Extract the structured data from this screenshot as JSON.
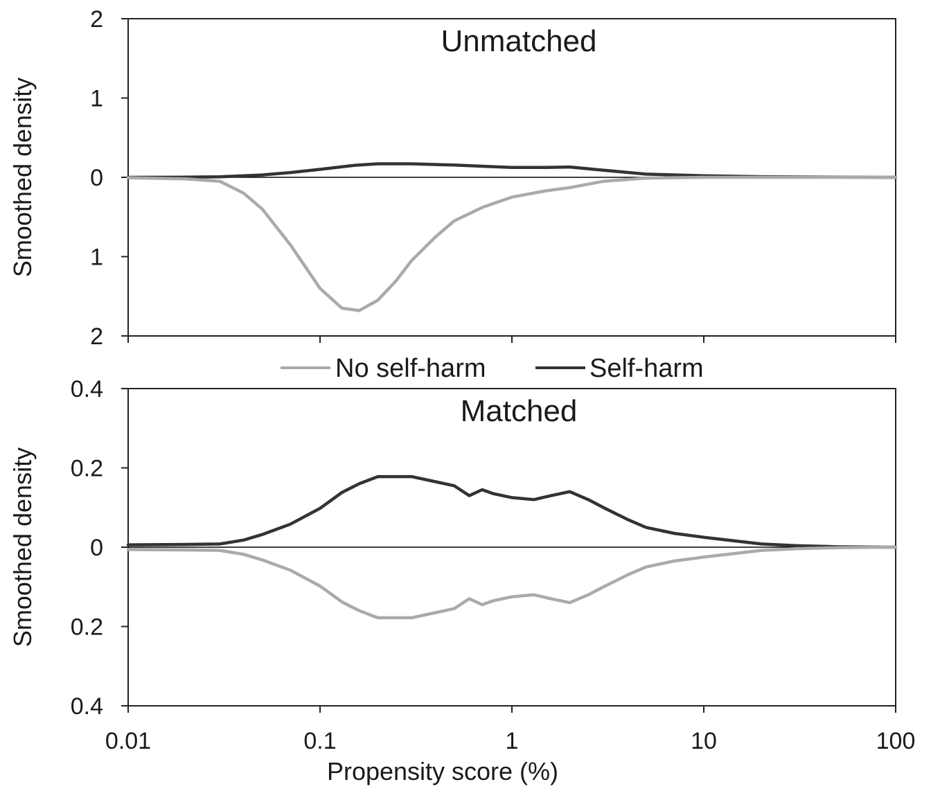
{
  "chart_data": [
    {
      "type": "line",
      "title": "Unmatched",
      "xlabel": "",
      "ylabel": "Smoothed density",
      "x_scale": "log",
      "xlim": [
        0.01,
        100
      ],
      "ylim": [
        -2,
        2
      ],
      "x_ticks": [
        "0.01",
        "0.1",
        "1",
        "10",
        "100"
      ],
      "y_tick_labels": [
        "2",
        "1",
        "0",
        "1",
        "2"
      ],
      "y_tick_values": [
        2,
        1,
        0,
        -1,
        -2
      ],
      "series": [
        {
          "name": "Self-harm",
          "color": "#333333",
          "x": [
            0.01,
            0.02,
            0.03,
            0.05,
            0.07,
            0.1,
            0.15,
            0.2,
            0.3,
            0.5,
            0.7,
            1,
            1.5,
            2,
            3,
            5,
            10,
            20,
            50,
            100
          ],
          "y": [
            0,
            0.002,
            0.006,
            0.03,
            0.06,
            0.1,
            0.15,
            0.17,
            0.17,
            0.155,
            0.14,
            0.125,
            0.125,
            0.13,
            0.09,
            0.04,
            0.02,
            0.008,
            0.002,
            0
          ]
        },
        {
          "name": "No self-harm",
          "color": "#aaaaaa",
          "x": [
            0.01,
            0.02,
            0.03,
            0.04,
            0.05,
            0.07,
            0.1,
            0.13,
            0.16,
            0.2,
            0.25,
            0.3,
            0.4,
            0.5,
            0.7,
            1,
            1.5,
            2,
            3,
            5,
            10,
            100
          ],
          "y": [
            -0.005,
            -0.02,
            -0.05,
            -0.2,
            -0.4,
            -0.85,
            -1.4,
            -1.65,
            -1.68,
            -1.55,
            -1.3,
            -1.05,
            -0.75,
            -0.55,
            -0.38,
            -0.25,
            -0.17,
            -0.13,
            -0.05,
            -0.01,
            0,
            0
          ]
        }
      ]
    },
    {
      "type": "line",
      "title": "Matched",
      "xlabel": "Propensity score (%)",
      "ylabel": "Smoothed density",
      "x_scale": "log",
      "xlim": [
        0.01,
        100
      ],
      "ylim": [
        -0.4,
        0.4
      ],
      "x_ticks": [
        "0.01",
        "0.1",
        "1",
        "10",
        "100"
      ],
      "y_tick_labels": [
        "0.4",
        "0.2",
        "0",
        "0.2",
        "0.4"
      ],
      "y_tick_values": [
        0.4,
        0.2,
        0,
        -0.2,
        -0.4
      ],
      "series": [
        {
          "name": "Self-harm",
          "color": "#333333",
          "x": [
            0.01,
            0.02,
            0.03,
            0.04,
            0.05,
            0.07,
            0.1,
            0.13,
            0.16,
            0.2,
            0.25,
            0.3,
            0.4,
            0.5,
            0.6,
            0.7,
            0.8,
            1,
            1.3,
            1.6,
            2,
            2.5,
            3,
            4,
            5,
            7,
            10,
            15,
            20,
            30,
            50,
            100
          ],
          "y": [
            0.006,
            0.007,
            0.008,
            0.018,
            0.032,
            0.058,
            0.098,
            0.138,
            0.16,
            0.178,
            0.178,
            0.178,
            0.165,
            0.155,
            0.13,
            0.145,
            0.135,
            0.125,
            0.12,
            0.13,
            0.14,
            0.12,
            0.1,
            0.07,
            0.05,
            0.035,
            0.025,
            0.015,
            0.008,
            0.004,
            0.001,
            0
          ]
        },
        {
          "name": "No self-harm",
          "color": "#aaaaaa",
          "x": [
            0.01,
            0.02,
            0.03,
            0.04,
            0.05,
            0.07,
            0.1,
            0.13,
            0.16,
            0.2,
            0.25,
            0.3,
            0.4,
            0.5,
            0.6,
            0.7,
            0.8,
            1,
            1.3,
            1.6,
            2,
            2.5,
            3,
            4,
            5,
            7,
            10,
            15,
            20,
            30,
            50,
            100
          ],
          "y": [
            -0.006,
            -0.007,
            -0.008,
            -0.018,
            -0.032,
            -0.058,
            -0.098,
            -0.138,
            -0.16,
            -0.178,
            -0.178,
            -0.178,
            -0.165,
            -0.155,
            -0.13,
            -0.145,
            -0.135,
            -0.125,
            -0.12,
            -0.13,
            -0.14,
            -0.12,
            -0.1,
            -0.07,
            -0.05,
            -0.035,
            -0.025,
            -0.015,
            -0.008,
            -0.004,
            -0.001,
            0
          ]
        }
      ]
    }
  ],
  "legend": {
    "placement": "between-panels",
    "items": [
      {
        "label": "No self-harm",
        "color": "#aaaaaa"
      },
      {
        "label": "Self-harm",
        "color": "#333333"
      }
    ]
  }
}
